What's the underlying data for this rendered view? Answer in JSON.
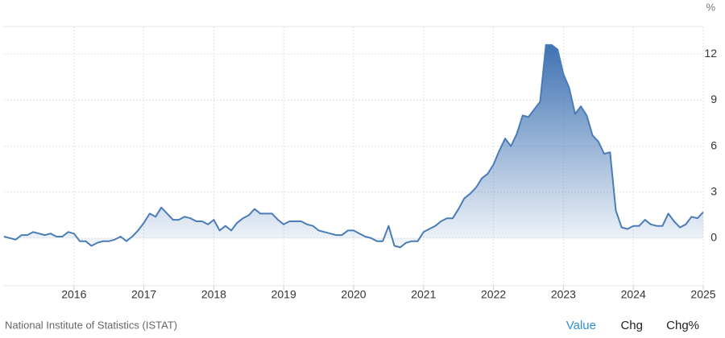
{
  "chart_data": {
    "type": "area",
    "unit": "%",
    "color": "#4a7cb8",
    "categories": [
      null,
      null,
      null,
      null,
      null,
      null,
      null,
      null,
      null,
      null,
      null,
      null,
      "2016",
      null,
      null,
      null,
      null,
      null,
      null,
      null,
      null,
      null,
      null,
      null,
      "2017",
      null,
      null,
      null,
      null,
      null,
      null,
      null,
      null,
      null,
      null,
      null,
      "2018",
      null,
      null,
      null,
      null,
      null,
      null,
      null,
      null,
      null,
      null,
      null,
      "2019",
      null,
      null,
      null,
      null,
      null,
      null,
      null,
      null,
      null,
      null,
      null,
      "2020",
      null,
      null,
      null,
      null,
      null,
      null,
      null,
      null,
      null,
      null,
      null,
      "2021",
      null,
      null,
      null,
      null,
      null,
      null,
      null,
      null,
      null,
      null,
      null,
      "2022",
      null,
      null,
      null,
      null,
      null,
      null,
      null,
      null,
      null,
      null,
      null,
      "2023",
      null,
      null,
      null,
      null,
      null,
      null,
      null,
      null,
      null,
      null,
      null,
      "2024",
      null,
      null,
      null,
      null,
      null,
      null,
      null,
      null,
      null,
      null,
      null,
      "2025"
    ],
    "values": [
      0.1,
      0.0,
      -0.1,
      0.2,
      0.2,
      0.4,
      0.3,
      0.2,
      0.3,
      0.1,
      0.1,
      0.4,
      0.3,
      -0.2,
      -0.2,
      -0.5,
      -0.3,
      -0.2,
      -0.2,
      -0.1,
      0.1,
      -0.2,
      0.1,
      0.5,
      1.0,
      1.6,
      1.4,
      2.0,
      1.6,
      1.2,
      1.2,
      1.4,
      1.3,
      1.1,
      1.1,
      0.9,
      1.2,
      0.5,
      0.8,
      0.5,
      1.0,
      1.3,
      1.5,
      1.9,
      1.6,
      1.6,
      1.6,
      1.2,
      0.9,
      1.1,
      1.1,
      1.1,
      0.9,
      0.8,
      0.5,
      0.4,
      0.3,
      0.2,
      0.2,
      0.5,
      0.5,
      0.3,
      0.1,
      0.0,
      -0.2,
      -0.2,
      0.8,
      -0.5,
      -0.6,
      -0.3,
      -0.2,
      -0.2,
      0.4,
      0.6,
      0.8,
      1.1,
      1.3,
      1.3,
      1.9,
      2.6,
      2.9,
      3.3,
      3.9,
      4.2,
      4.8,
      5.7,
      6.5,
      6.0,
      6.8,
      8.0,
      7.9,
      8.4,
      8.9,
      12.6,
      12.6,
      12.3,
      10.7,
      9.8,
      8.1,
      8.6,
      8.0,
      6.7,
      6.3,
      5.5,
      5.6,
      1.8,
      0.7,
      0.6,
      0.8,
      0.8,
      1.2,
      0.9,
      0.8,
      0.8,
      1.6,
      1.1,
      0.7,
      0.9,
      1.4,
      1.3,
      1.7
    ],
    "ylim": [
      -3.1,
      13.8
    ],
    "yticks": [
      0,
      3,
      6,
      9,
      12
    ],
    "grid": true
  },
  "source": "National Institute of Statistics (ISTAT)",
  "buttons": [
    "Value",
    "Chg",
    "Chg%"
  ]
}
